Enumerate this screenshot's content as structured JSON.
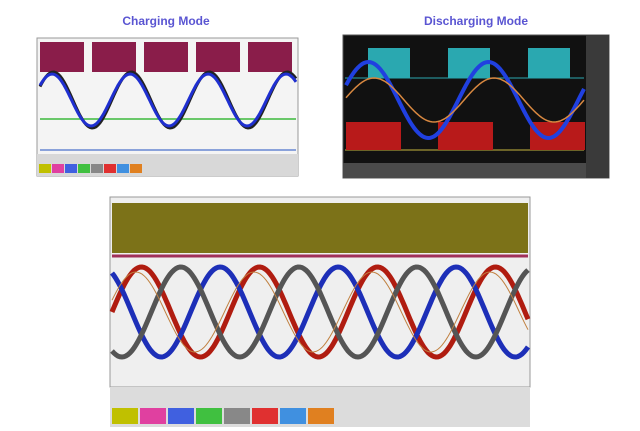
{
  "header": {
    "left_title": "Charging Mode",
    "right_title": "Discharging Mode"
  }
}
